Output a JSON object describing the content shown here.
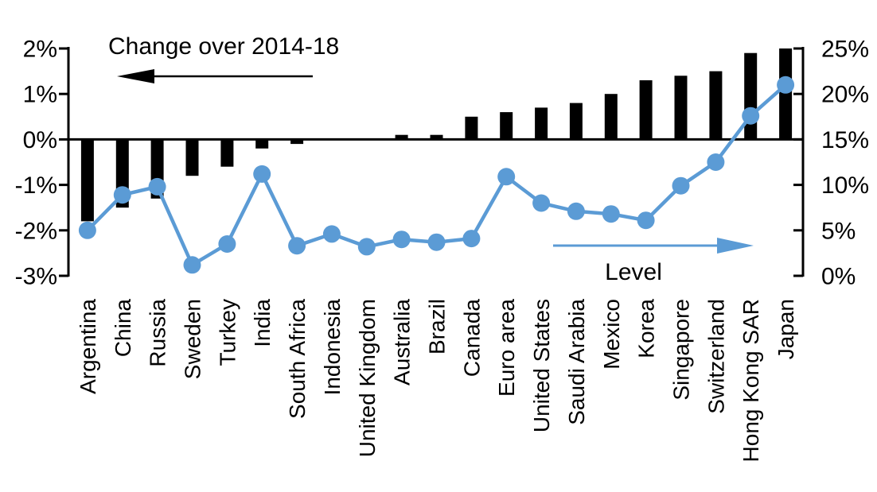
{
  "chart_data": {
    "type": "bar",
    "subtype": "dual-axis bar+line combo",
    "title": "",
    "categories": [
      "Argentina",
      "China",
      "Russia",
      "Sweden",
      "Turkey",
      "India",
      "South Africa",
      "Indonesia",
      "United Kingdom",
      "Australia",
      "Brazil",
      "Canada",
      "Euro area",
      "United States",
      "Saudi Arabia",
      "Mexico",
      "Korea",
      "Singapore",
      "Switzerland",
      "Hong Kong SAR",
      "Japan"
    ],
    "series": [
      {
        "name": "Change over 2014-18",
        "type": "bar",
        "axis": "left",
        "color": "#000000",
        "values": [
          -1.8,
          -1.5,
          -1.3,
          -0.8,
          -0.6,
          -0.2,
          -0.1,
          0.0,
          0.0,
          0.1,
          0.1,
          0.5,
          0.6,
          0.7,
          0.8,
          1.0,
          1.3,
          1.4,
          1.5,
          1.9,
          2.0
        ]
      },
      {
        "name": "Level",
        "type": "line",
        "axis": "right",
        "color": "#5B9BD5",
        "values": [
          5.0,
          8.9,
          9.8,
          1.2,
          3.5,
          11.2,
          3.3,
          4.6,
          3.2,
          4.0,
          3.7,
          4.1,
          10.9,
          8.0,
          7.1,
          6.8,
          6.1,
          9.9,
          12.5,
          17.6,
          21.0
        ]
      }
    ],
    "left_axis": {
      "tick_labels": [
        "2%",
        "1%",
        "0%",
        "-1%",
        "-2%",
        "-3%"
      ],
      "tick_values": [
        2,
        1,
        0,
        -1,
        -2,
        -3
      ],
      "range": [
        -3,
        2
      ]
    },
    "right_axis": {
      "tick_labels": [
        "25%",
        "20%",
        "15%",
        "10%",
        "5%",
        "0%"
      ],
      "tick_values": [
        25,
        20,
        15,
        10,
        5,
        0
      ],
      "range": [
        0,
        25
      ]
    },
    "annotations": [
      {
        "text": "Change over 2014-18",
        "arrow_direction": "left",
        "arrow_color": "#000000",
        "text_color": "#000000"
      },
      {
        "text": "Level",
        "arrow_direction": "right",
        "arrow_color": "#5B9BD5",
        "text_color": "#000000"
      }
    ],
    "grid": "off",
    "legend_position": "none"
  }
}
